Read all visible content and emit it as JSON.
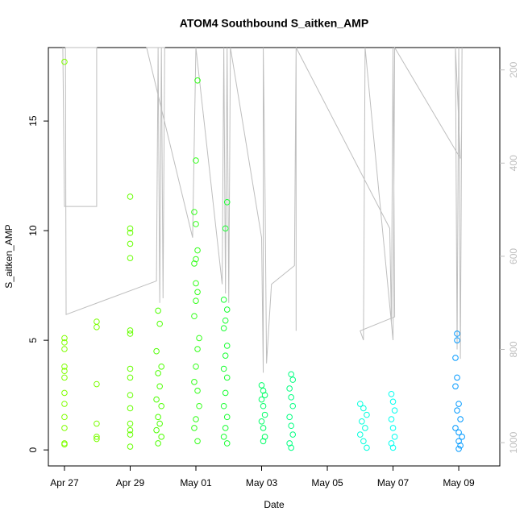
{
  "chart_data": {
    "type": "scatter",
    "title": "ATOM4 Southbound S_aitken_AMP",
    "x_label": "Date",
    "y_label": "S_aitken_AMP",
    "xlim": [
      -0.49,
      13.25
    ],
    "ylim": [
      -0.73,
      18.35
    ],
    "y2lim": [
      1050,
      152
    ],
    "xticks": [
      {
        "value": 0,
        "label": "Apr 27"
      },
      {
        "value": 2,
        "label": "Apr 29"
      },
      {
        "value": 4,
        "label": "May 01"
      },
      {
        "value": 6,
        "label": "May 03"
      },
      {
        "value": 8,
        "label": "May 05"
      },
      {
        "value": 10,
        "label": "May 07"
      },
      {
        "value": 12,
        "label": "May 09"
      }
    ],
    "yticks": [
      0,
      5,
      10,
      15
    ],
    "y2ticks": [
      200,
      400,
      600,
      800,
      1000
    ],
    "y2_color": "#bebebe",
    "series": [
      {
        "color": "#80ff00",
        "x": [
          0,
          0,
          0,
          0,
          0,
          0,
          0,
          0,
          0,
          0,
          0,
          0,
          0
        ],
        "values": [
          17.7,
          5.1,
          4.9,
          4.6,
          3.8,
          3.6,
          3.3,
          2.6,
          2.1,
          1.5,
          1.0,
          0.3,
          0.25
        ]
      },
      {
        "color": "#7aff00",
        "x": [
          0.98,
          0.98,
          0.98,
          0.98,
          0.98,
          0.98
        ],
        "values": [
          5.85,
          5.6,
          3.0,
          1.2,
          0.6,
          0.5
        ]
      },
      {
        "color": "#66ff00",
        "x": [
          2,
          2,
          2,
          2,
          2,
          2,
          2,
          2,
          2,
          2,
          2,
          2,
          2,
          2,
          2
        ],
        "values": [
          11.55,
          10.1,
          9.9,
          9.4,
          8.75,
          5.45,
          5.3,
          3.7,
          3.3,
          2.5,
          1.9,
          1.2,
          0.9,
          0.7,
          0.15
        ]
      },
      {
        "color": "#4dff00",
        "x": [
          2.85,
          2.9,
          2.8,
          2.95,
          2.85,
          2.9,
          2.8,
          2.95,
          2.85,
          2.9,
          2.8,
          2.95,
          2.85
        ],
        "values": [
          6.35,
          5.75,
          4.5,
          3.8,
          3.5,
          2.9,
          2.3,
          2.0,
          1.5,
          1.2,
          0.9,
          0.6,
          0.3
        ]
      },
      {
        "color": "#33ff1a",
        "x": [
          4.05,
          4.0,
          3.95,
          4.0,
          4.05,
          4.0,
          3.95,
          4.0,
          4.05,
          4.0,
          3.95,
          4.1,
          4.05,
          4.0,
          3.95,
          4.05,
          4.1,
          4.0,
          3.95,
          4.05
        ],
        "values": [
          16.85,
          13.2,
          10.85,
          10.3,
          9.1,
          8.7,
          8.5,
          7.6,
          7.2,
          6.8,
          6.1,
          5.1,
          4.6,
          3.8,
          3.1,
          2.7,
          2.0,
          1.4,
          1.0,
          0.4
        ]
      },
      {
        "color": "#1aff33",
        "x": [
          4.95,
          4.9,
          4.85,
          4.95,
          4.9,
          4.85,
          4.95,
          4.9,
          4.85,
          4.95,
          4.9,
          4.85,
          4.95,
          4.9,
          4.85,
          4.95
        ],
        "values": [
          11.3,
          10.1,
          6.85,
          6.4,
          5.9,
          5.55,
          4.75,
          4.3,
          3.7,
          3.3,
          2.6,
          2.0,
          1.5,
          1.0,
          0.6,
          0.3
        ]
      },
      {
        "color": "#00ff66",
        "x": [
          6.0,
          6.05,
          6.1,
          6.0,
          6.05,
          6.1,
          6.0,
          6.05,
          6.1,
          6.05
        ],
        "values": [
          2.95,
          2.7,
          2.5,
          2.3,
          2.0,
          1.6,
          1.3,
          1.0,
          0.6,
          0.4
        ]
      },
      {
        "color": "#00ff80",
        "x": [
          6.9,
          6.95,
          6.85,
          6.9,
          6.95,
          6.85,
          6.9,
          6.95,
          6.85,
          6.9
        ],
        "values": [
          3.45,
          3.2,
          2.8,
          2.4,
          2.0,
          1.5,
          1.1,
          0.7,
          0.3,
          0.1
        ]
      },
      {
        "color": "#00ffdd",
        "x": [
          9.0,
          9.1,
          9.2,
          9.05,
          9.15,
          9.0,
          9.1,
          9.2
        ],
        "values": [
          2.1,
          1.9,
          1.6,
          1.3,
          1.0,
          0.7,
          0.4,
          0.1
        ]
      },
      {
        "color": "#00fff0",
        "x": [
          9.95,
          10.0,
          10.05,
          9.95,
          10.0,
          10.05,
          9.95,
          10.0
        ],
        "values": [
          2.55,
          2.2,
          1.8,
          1.4,
          1.0,
          0.6,
          0.3,
          0.1
        ]
      },
      {
        "color": "#0099ff",
        "x": [
          11.95,
          11.95,
          11.9,
          11.95,
          11.9,
          12.0,
          11.95,
          12.05,
          11.9,
          12.0,
          12.1,
          12.0,
          12.05,
          12.0
        ],
        "values": [
          5.3,
          5.0,
          4.2,
          3.3,
          2.9,
          2.1,
          1.8,
          1.4,
          1.0,
          0.8,
          0.6,
          0.4,
          0.2,
          0.05
        ]
      },
      {
        "type": "line",
        "axis": "y2",
        "color": "#bebebe",
        "x": [
          -0.05,
          0,
          0.98,
          0.98,
          0.03,
          0.05,
          2.8,
          2.85,
          2.9,
          2.95,
          3.0,
          3.05,
          2.5,
          3.9,
          4.0,
          4.8,
          4.85,
          4.9,
          4.95,
          5.0,
          5.05,
          6.0,
          6.05,
          6.05,
          6.1,
          6.15,
          6.3,
          7.0,
          7.05,
          7.05,
          7.05,
          9.9,
          9.95,
          10.0,
          10.05,
          9.0,
          9.1,
          9.15,
          10.0,
          10.05,
          12.05,
          11.9,
          11.95,
          12.0,
          12.05,
          12.1
        ],
        "values": [
          152,
          493,
          493,
          152,
          152,
          725,
          653,
          152,
          700,
          152,
          690,
          152,
          152,
          560,
          152,
          660,
          152,
          680,
          152,
          700,
          152,
          560,
          850,
          152,
          430,
          830,
          660,
          620,
          152,
          760,
          152,
          540,
          740,
          152,
          730,
          760,
          780,
          152,
          780,
          152,
          390,
          152,
          800,
          152,
          820,
          152
        ]
      }
    ]
  }
}
